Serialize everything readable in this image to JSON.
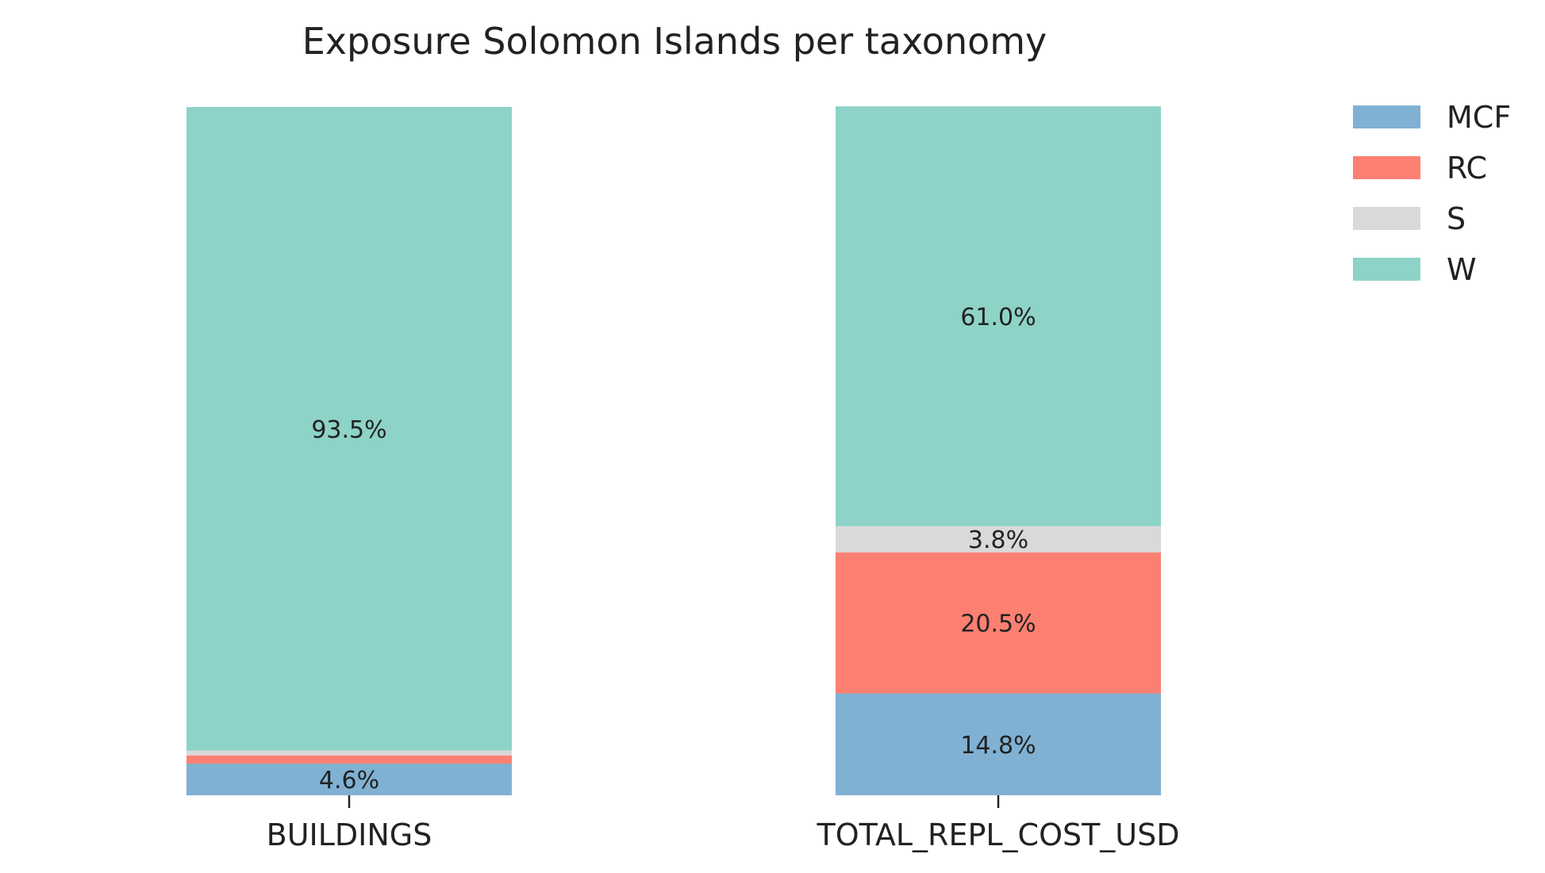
{
  "chart_data": {
    "type": "bar",
    "stacked": true,
    "title": "Exposure Solomon Islands per taxonomy",
    "categories": [
      "BUILDINGS",
      "TOTAL_REPL_COST_USD"
    ],
    "ylim": [
      0,
      100
    ],
    "grid": false,
    "legend_position": "top-right",
    "series": [
      {
        "name": "MCF",
        "color": "#80b1d3",
        "values": [
          4.6,
          14.8
        ]
      },
      {
        "name": "RC",
        "color": "#fb8072",
        "values": [
          1.2,
          20.5
        ]
      },
      {
        "name": "S",
        "color": "#d9d9d9",
        "values": [
          0.7,
          3.8
        ]
      },
      {
        "name": "W",
        "color": "#8dd3c7",
        "values": [
          93.5,
          61.0
        ]
      }
    ],
    "data_labels": [
      {
        "category": "BUILDINGS",
        "series": "MCF",
        "text": "4.6%"
      },
      {
        "category": "BUILDINGS",
        "series": "W",
        "text": "93.5%"
      },
      {
        "category": "TOTAL_REPL_COST_USD",
        "series": "MCF",
        "text": "14.8%"
      },
      {
        "category": "TOTAL_REPL_COST_USD",
        "series": "RC",
        "text": "20.5%"
      },
      {
        "category": "TOTAL_REPL_COST_USD",
        "series": "S",
        "text": "3.8%"
      },
      {
        "category": "TOTAL_REPL_COST_USD",
        "series": "W",
        "text": "61.0%"
      }
    ]
  }
}
